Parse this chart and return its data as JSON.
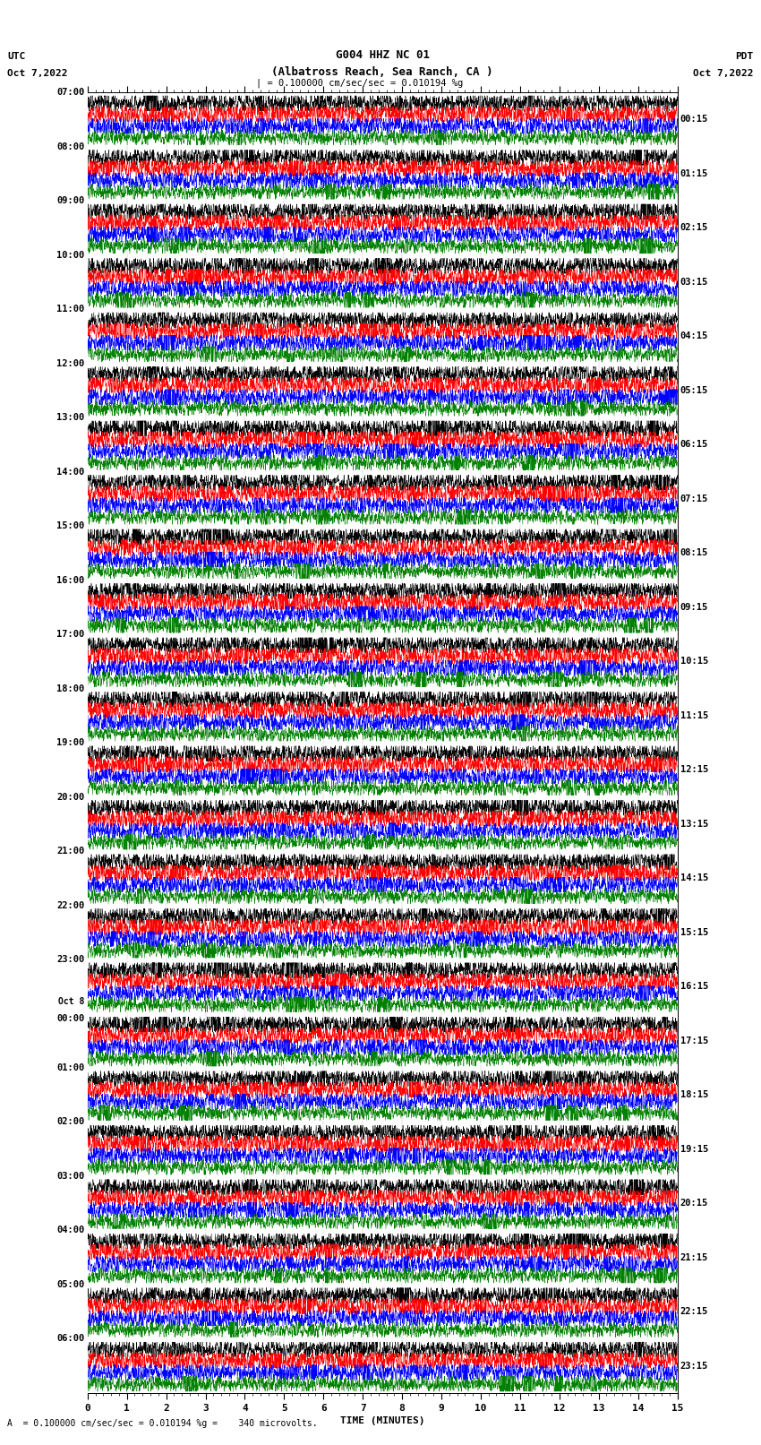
{
  "title_line1": "G004 HHZ NC 01",
  "title_line2": "(Albatross Reach, Sea Ranch, CA )",
  "scale_text": "= 0.100000 cm/sec/sec = 0.010194 %g",
  "bottom_text": "A  = 0.100000 cm/sec/sec = 0.010194 %g =    340 microvolts.",
  "utc_label": "UTC",
  "utc_date": "Oct 7,2022",
  "pdt_label": "PDT",
  "pdt_date": "Oct 7,2022",
  "xlabel": "TIME (MINUTES)",
  "left_times": [
    "07:00",
    "08:00",
    "09:00",
    "10:00",
    "11:00",
    "12:00",
    "13:00",
    "14:00",
    "15:00",
    "16:00",
    "17:00",
    "18:00",
    "19:00",
    "20:00",
    "21:00",
    "22:00",
    "23:00",
    "Oct 8\n00:00",
    "01:00",
    "02:00",
    "03:00",
    "04:00",
    "05:00",
    "06:00"
  ],
  "right_times": [
    "00:15",
    "01:15",
    "02:15",
    "03:15",
    "04:15",
    "05:15",
    "06:15",
    "07:15",
    "08:15",
    "09:15",
    "10:15",
    "11:15",
    "12:15",
    "13:15",
    "14:15",
    "15:15",
    "16:15",
    "17:15",
    "18:15",
    "19:15",
    "20:15",
    "21:15",
    "22:15",
    "23:15"
  ],
  "trace_colors": [
    "black",
    "red",
    "blue",
    "green"
  ],
  "n_rows": 24,
  "traces_per_row": 4,
  "xmin": 0,
  "xmax": 15,
  "background": "white",
  "fig_width": 8.5,
  "fig_height": 16.13,
  "dpi": 100
}
